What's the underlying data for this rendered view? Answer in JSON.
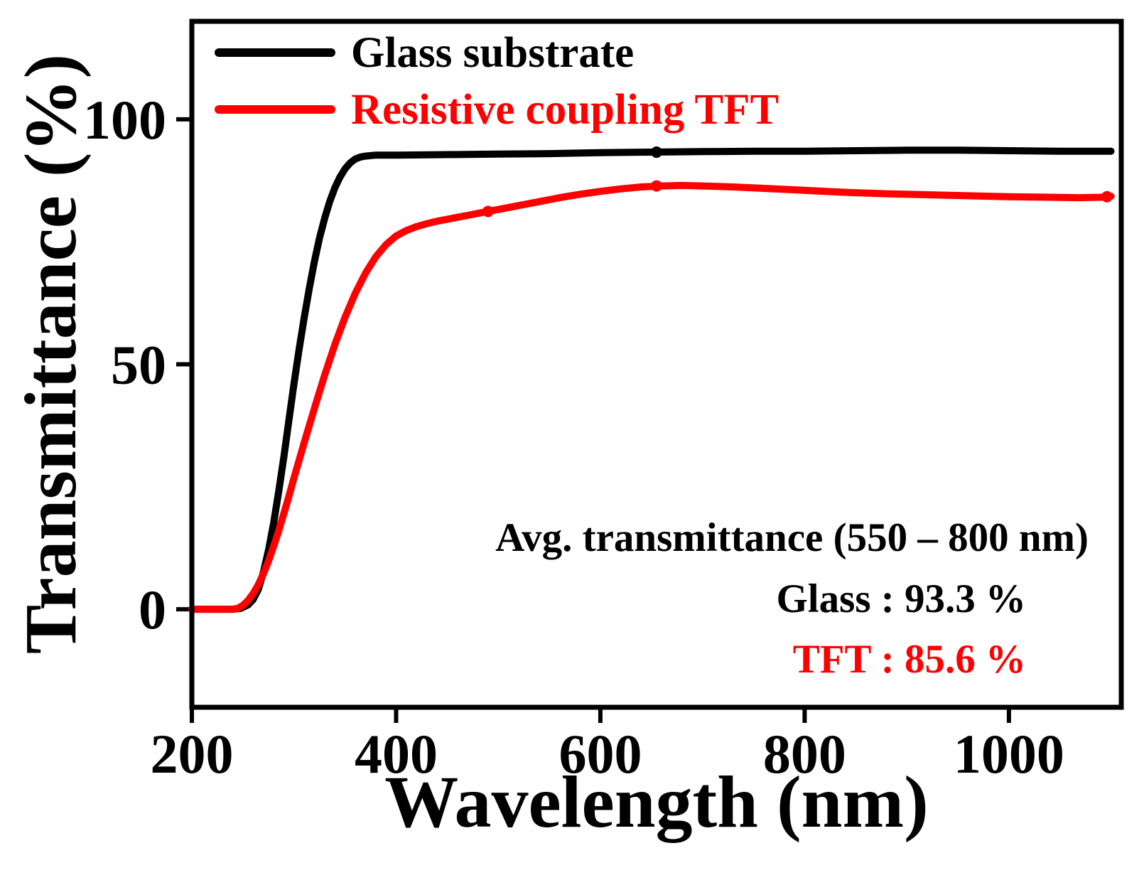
{
  "chart_data": {
    "type": "line",
    "title": "",
    "xlabel": "Wavelength (nm)",
    "ylabel": "Transmittance (%)",
    "xlim": [
      200,
      1110
    ],
    "ylim": [
      -20,
      120
    ],
    "xticks": [
      200,
      400,
      600,
      800,
      1000
    ],
    "yticks": [
      0,
      50,
      100
    ],
    "grid": false,
    "legend_position": "top-left",
    "series": [
      {
        "name": "Glass substrate",
        "color": "#000000",
        "points": [
          [
            200,
            0
          ],
          [
            240,
            0
          ],
          [
            248,
            0.2
          ],
          [
            255,
            0.9
          ],
          [
            260,
            2
          ],
          [
            265,
            4
          ],
          [
            270,
            7.5
          ],
          [
            275,
            12
          ],
          [
            280,
            17.5
          ],
          [
            285,
            24
          ],
          [
            290,
            31
          ],
          [
            295,
            38.5
          ],
          [
            300,
            46
          ],
          [
            305,
            53
          ],
          [
            310,
            59.5
          ],
          [
            315,
            65.5
          ],
          [
            320,
            71
          ],
          [
            325,
            75.8
          ],
          [
            330,
            79.8
          ],
          [
            335,
            83.2
          ],
          [
            340,
            86
          ],
          [
            345,
            88.2
          ],
          [
            350,
            89.9
          ],
          [
            355,
            91.1
          ],
          [
            360,
            91.9
          ],
          [
            365,
            92.3
          ],
          [
            370,
            92.5
          ],
          [
            380,
            92.7
          ],
          [
            400,
            92.7
          ],
          [
            450,
            92.8
          ],
          [
            500,
            92.9
          ],
          [
            550,
            93.0
          ],
          [
            600,
            93.2
          ],
          [
            650,
            93.3
          ],
          [
            700,
            93.4
          ],
          [
            750,
            93.5
          ],
          [
            800,
            93.5
          ],
          [
            850,
            93.6
          ],
          [
            900,
            93.7
          ],
          [
            950,
            93.7
          ],
          [
            1000,
            93.6
          ],
          [
            1050,
            93.5
          ],
          [
            1100,
            93.5
          ]
        ]
      },
      {
        "name": "Resistive coupling TFT",
        "color": "#ff0000",
        "points": [
          [
            200,
            0
          ],
          [
            240,
            0
          ],
          [
            245,
            0.2
          ],
          [
            250,
            0.8
          ],
          [
            255,
            1.8
          ],
          [
            260,
            3.2
          ],
          [
            265,
            5
          ],
          [
            270,
            7.2
          ],
          [
            275,
            9.8
          ],
          [
            280,
            12.8
          ],
          [
            285,
            16
          ],
          [
            290,
            19.5
          ],
          [
            295,
            23
          ],
          [
            300,
            26.8
          ],
          [
            310,
            34
          ],
          [
            320,
            41
          ],
          [
            330,
            47.8
          ],
          [
            340,
            54
          ],
          [
            350,
            59.6
          ],
          [
            360,
            64.5
          ],
          [
            370,
            68.6
          ],
          [
            380,
            71.9
          ],
          [
            390,
            74.4
          ],
          [
            400,
            76.2
          ],
          [
            410,
            77.3
          ],
          [
            420,
            78.1
          ],
          [
            430,
            78.7
          ],
          [
            440,
            79.2
          ],
          [
            450,
            79.6
          ],
          [
            460,
            80
          ],
          [
            470,
            80.4
          ],
          [
            480,
            80.8
          ],
          [
            490,
            81.2
          ],
          [
            500,
            81.6
          ],
          [
            520,
            82.4
          ],
          [
            540,
            83.2
          ],
          [
            560,
            84
          ],
          [
            580,
            84.7
          ],
          [
            600,
            85.3
          ],
          [
            620,
            85.8
          ],
          [
            640,
            86.2
          ],
          [
            660,
            86.4
          ],
          [
            680,
            86.5
          ],
          [
            700,
            86.4
          ],
          [
            730,
            86.2
          ],
          [
            760,
            85.9
          ],
          [
            800,
            85.5
          ],
          [
            840,
            85.1
          ],
          [
            880,
            84.8
          ],
          [
            920,
            84.6
          ],
          [
            960,
            84.4
          ],
          [
            1000,
            84.2
          ],
          [
            1040,
            84.1
          ],
          [
            1070,
            84
          ],
          [
            1090,
            84.1
          ],
          [
            1100,
            84.3
          ]
        ]
      }
    ],
    "markers": [
      {
        "x": 490,
        "y": 81.2,
        "color": "#ff0000"
      },
      {
        "x": 655,
        "y": 86.4,
        "color": "#ff0000"
      },
      {
        "x": 1096,
        "y": 84.2,
        "color": "#ff0000"
      },
      {
        "x": 655,
        "y": 93.3,
        "color": "#000000"
      }
    ]
  },
  "annotation": {
    "title": "Avg. transmittance (550 – 800 nm)",
    "glass": "Glass : 93.3 %",
    "tft": "TFT : 85.6 %",
    "glass_color": "#000000",
    "tft_color": "#ff0000"
  }
}
